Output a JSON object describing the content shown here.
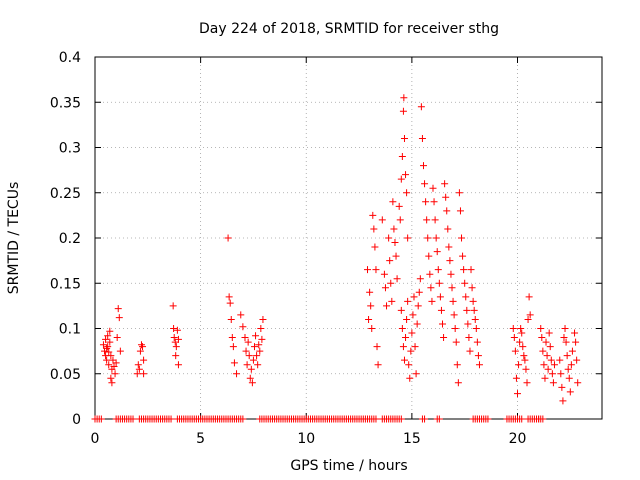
{
  "chart_data": {
    "type": "scatter",
    "title": "Day 224 of 2018, SRMTID for receiver sthg",
    "xlabel": "GPS time / hours",
    "ylabel": "SRMTID / TECUs",
    "xlim": [
      0,
      24
    ],
    "ylim": [
      0,
      0.4
    ],
    "x_ticks": [
      0,
      5,
      10,
      15,
      20
    ],
    "x_tick_labels": [
      "0",
      "5",
      "10",
      "15",
      "20"
    ],
    "y_ticks": [
      0,
      0.05,
      0.1,
      0.15,
      0.2,
      0.25,
      0.3,
      0.35,
      0.4
    ],
    "y_tick_labels": [
      "0",
      "0.05",
      "0.1",
      "0.15",
      "0.2",
      "0.25",
      "0.3",
      "0.35",
      "0.4"
    ],
    "grid": true,
    "marker": "+",
    "color": "#ff0000",
    "series": [
      {
        "name": "SRMTID",
        "points": [
          [
            0.4,
            0.082
          ],
          [
            0.45,
            0.075
          ],
          [
            0.5,
            0.07
          ],
          [
            0.5,
            0.088
          ],
          [
            0.55,
            0.078
          ],
          [
            0.55,
            0.065
          ],
          [
            0.6,
            0.092
          ],
          [
            0.6,
            0.08
          ],
          [
            0.65,
            0.074
          ],
          [
            0.65,
            0.06
          ],
          [
            0.7,
            0.097
          ],
          [
            0.7,
            0.085
          ],
          [
            0.75,
            0.07
          ],
          [
            0.75,
            0.045
          ],
          [
            0.8,
            0.055
          ],
          [
            0.8,
            0.04
          ],
          [
            0.85,
            0.065
          ],
          [
            0.9,
            0.058
          ],
          [
            0.95,
            0.05
          ],
          [
            1.0,
            0.062
          ],
          [
            1.05,
            0.09
          ],
          [
            1.1,
            0.122
          ],
          [
            1.15,
            0.112
          ],
          [
            1.2,
            0.075
          ],
          [
            2.0,
            0.05
          ],
          [
            2.05,
            0.06
          ],
          [
            2.1,
            0.055
          ],
          [
            2.15,
            0.075
          ],
          [
            2.2,
            0.082
          ],
          [
            2.25,
            0.08
          ],
          [
            2.3,
            0.065
          ],
          [
            2.3,
            0.05
          ],
          [
            3.7,
            0.125
          ],
          [
            3.72,
            0.1
          ],
          [
            3.75,
            0.09
          ],
          [
            3.8,
            0.085
          ],
          [
            3.82,
            0.07
          ],
          [
            3.85,
            0.08
          ],
          [
            3.9,
            0.098
          ],
          [
            3.95,
            0.06
          ],
          [
            3.95,
            0.088
          ],
          [
            6.3,
            0.2
          ],
          [
            6.35,
            0.135
          ],
          [
            6.4,
            0.128
          ],
          [
            6.45,
            0.11
          ],
          [
            6.5,
            0.09
          ],
          [
            6.55,
            0.08
          ],
          [
            6.6,
            0.062
          ],
          [
            6.7,
            0.05
          ],
          [
            6.9,
            0.115
          ],
          [
            7.0,
            0.102
          ],
          [
            7.1,
            0.09
          ],
          [
            7.15,
            0.075
          ],
          [
            7.2,
            0.06
          ],
          [
            7.25,
            0.085
          ],
          [
            7.3,
            0.07
          ],
          [
            7.35,
            0.045
          ],
          [
            7.4,
            0.055
          ],
          [
            7.45,
            0.04
          ],
          [
            7.5,
            0.065
          ],
          [
            7.55,
            0.08
          ],
          [
            7.6,
            0.092
          ],
          [
            7.65,
            0.07
          ],
          [
            7.7,
            0.06
          ],
          [
            7.75,
            0.082
          ],
          [
            7.8,
            0.075
          ],
          [
            7.85,
            0.1
          ],
          [
            7.9,
            0.088
          ],
          [
            7.95,
            0.11
          ],
          [
            12.9,
            0.165
          ],
          [
            12.95,
            0.11
          ],
          [
            13.0,
            0.14
          ],
          [
            13.05,
            0.125
          ],
          [
            13.1,
            0.1
          ],
          [
            13.15,
            0.225
          ],
          [
            13.2,
            0.21
          ],
          [
            13.25,
            0.19
          ],
          [
            13.3,
            0.165
          ],
          [
            13.35,
            0.08
          ],
          [
            13.4,
            0.06
          ],
          [
            13.6,
            0.22
          ],
          [
            13.7,
            0.16
          ],
          [
            13.75,
            0.145
          ],
          [
            13.8,
            0.125
          ],
          [
            13.9,
            0.2
          ],
          [
            13.95,
            0.175
          ],
          [
            14.0,
            0.15
          ],
          [
            14.05,
            0.13
          ],
          [
            14.1,
            0.24
          ],
          [
            14.15,
            0.21
          ],
          [
            14.2,
            0.195
          ],
          [
            14.25,
            0.18
          ],
          [
            14.3,
            0.155
          ],
          [
            14.4,
            0.235
          ],
          [
            14.45,
            0.22
          ],
          [
            14.5,
            0.265
          ],
          [
            14.55,
            0.29
          ],
          [
            14.6,
            0.34
          ],
          [
            14.62,
            0.355
          ],
          [
            14.65,
            0.31
          ],
          [
            14.7,
            0.27
          ],
          [
            14.75,
            0.25
          ],
          [
            14.8,
            0.2
          ],
          [
            14.5,
            0.12
          ],
          [
            14.55,
            0.1
          ],
          [
            14.6,
            0.08
          ],
          [
            14.65,
            0.065
          ],
          [
            14.7,
            0.09
          ],
          [
            14.75,
            0.11
          ],
          [
            14.8,
            0.13
          ],
          [
            14.85,
            0.06
          ],
          [
            14.9,
            0.045
          ],
          [
            14.95,
            0.075
          ],
          [
            15.0,
            0.095
          ],
          [
            15.05,
            0.115
          ],
          [
            15.1,
            0.135
          ],
          [
            15.15,
            0.08
          ],
          [
            15.2,
            0.05
          ],
          [
            15.25,
            0.105
          ],
          [
            15.3,
            0.125
          ],
          [
            15.35,
            0.14
          ],
          [
            15.4,
            0.155
          ],
          [
            15.45,
            0.345
          ],
          [
            15.5,
            0.31
          ],
          [
            15.55,
            0.28
          ],
          [
            15.6,
            0.26
          ],
          [
            15.65,
            0.24
          ],
          [
            15.7,
            0.22
          ],
          [
            15.75,
            0.2
          ],
          [
            15.8,
            0.18
          ],
          [
            15.85,
            0.16
          ],
          [
            15.9,
            0.145
          ],
          [
            15.95,
            0.13
          ],
          [
            16.0,
            0.255
          ],
          [
            16.05,
            0.24
          ],
          [
            16.1,
            0.22
          ],
          [
            16.15,
            0.2
          ],
          [
            16.2,
            0.185
          ],
          [
            16.25,
            0.165
          ],
          [
            16.3,
            0.15
          ],
          [
            16.35,
            0.135
          ],
          [
            16.4,
            0.12
          ],
          [
            16.45,
            0.105
          ],
          [
            16.5,
            0.09
          ],
          [
            16.55,
            0.26
          ],
          [
            16.6,
            0.245
          ],
          [
            16.65,
            0.23
          ],
          [
            16.7,
            0.21
          ],
          [
            16.75,
            0.19
          ],
          [
            16.8,
            0.175
          ],
          [
            16.85,
            0.16
          ],
          [
            16.9,
            0.145
          ],
          [
            16.95,
            0.13
          ],
          [
            17.0,
            0.115
          ],
          [
            17.05,
            0.1
          ],
          [
            17.1,
            0.085
          ],
          [
            17.15,
            0.06
          ],
          [
            17.2,
            0.04
          ],
          [
            17.25,
            0.25
          ],
          [
            17.3,
            0.23
          ],
          [
            17.35,
            0.2
          ],
          [
            17.4,
            0.18
          ],
          [
            17.45,
            0.165
          ],
          [
            17.5,
            0.15
          ],
          [
            17.55,
            0.135
          ],
          [
            17.6,
            0.12
          ],
          [
            17.65,
            0.105
          ],
          [
            17.7,
            0.09
          ],
          [
            17.75,
            0.075
          ],
          [
            17.8,
            0.165
          ],
          [
            17.85,
            0.145
          ],
          [
            17.9,
            0.13
          ],
          [
            17.95,
            0.12
          ],
          [
            18.0,
            0.11
          ],
          [
            18.05,
            0.1
          ],
          [
            18.1,
            0.085
          ],
          [
            18.15,
            0.07
          ],
          [
            18.2,
            0.06
          ],
          [
            19.8,
            0.1
          ],
          [
            19.85,
            0.09
          ],
          [
            19.9,
            0.075
          ],
          [
            19.95,
            0.045
          ],
          [
            20.0,
            0.028
          ],
          [
            20.05,
            0.06
          ],
          [
            20.1,
            0.085
          ],
          [
            20.15,
            0.1
          ],
          [
            20.2,
            0.095
          ],
          [
            20.25,
            0.08
          ],
          [
            20.3,
            0.07
          ],
          [
            20.35,
            0.065
          ],
          [
            20.4,
            0.055
          ],
          [
            20.45,
            0.04
          ],
          [
            20.5,
            0.11
          ],
          [
            20.55,
            0.135
          ],
          [
            20.6,
            0.115
          ],
          [
            21.1,
            0.1
          ],
          [
            21.15,
            0.09
          ],
          [
            21.2,
            0.075
          ],
          [
            21.25,
            0.06
          ],
          [
            21.3,
            0.045
          ],
          [
            21.35,
            0.085
          ],
          [
            21.4,
            0.07
          ],
          [
            21.45,
            0.055
          ],
          [
            21.5,
            0.095
          ],
          [
            21.55,
            0.08
          ],
          [
            21.6,
            0.065
          ],
          [
            21.65,
            0.05
          ],
          [
            21.7,
            0.04
          ],
          [
            21.75,
            0.06
          ],
          [
            22.0,
            0.065
          ],
          [
            22.05,
            0.05
          ],
          [
            22.1,
            0.035
          ],
          [
            22.15,
            0.02
          ],
          [
            22.2,
            0.09
          ],
          [
            22.25,
            0.1
          ],
          [
            22.3,
            0.085
          ],
          [
            22.35,
            0.07
          ],
          [
            22.4,
            0.055
          ],
          [
            22.45,
            0.045
          ],
          [
            22.5,
            0.03
          ],
          [
            22.55,
            0.06
          ],
          [
            22.6,
            0.075
          ],
          [
            22.7,
            0.095
          ],
          [
            22.75,
            0.085
          ],
          [
            22.8,
            0.065
          ],
          [
            22.85,
            0.04
          ]
        ],
        "baseline_zero_ranges": [
          [
            0.0,
            0.3
          ],
          [
            1.0,
            1.8
          ],
          [
            2.1,
            3.6
          ],
          [
            3.9,
            6.0
          ],
          [
            6.1,
            7.0
          ],
          [
            7.8,
            13.3
          ],
          [
            13.6,
            14.5
          ],
          [
            15.5,
            15.6
          ],
          [
            16.2,
            16.3
          ],
          [
            17.9,
            18.6
          ],
          [
            19.5,
            20.2
          ],
          [
            20.5,
            21.0
          ],
          [
            21.0,
            21.2
          ]
        ]
      }
    ]
  }
}
